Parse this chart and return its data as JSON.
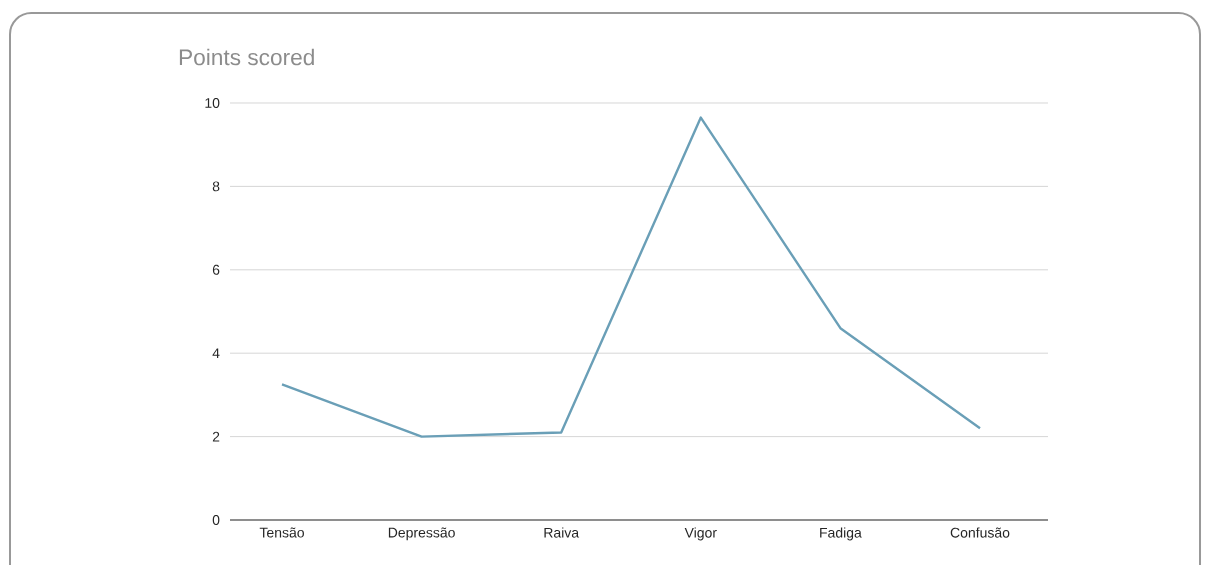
{
  "chart_data": {
    "type": "line",
    "title": "Points scored",
    "categories": [
      "Tensão",
      "Depressão",
      "Raiva",
      "Vigor",
      "Fadiga",
      "Confusão"
    ],
    "values": [
      3.25,
      2.0,
      2.1,
      9.65,
      4.6,
      2.2
    ],
    "color": "#6a9fb7",
    "ylim": [
      0,
      10
    ],
    "yticks": [
      0,
      2,
      4,
      6,
      8,
      10
    ],
    "grid": "y"
  }
}
